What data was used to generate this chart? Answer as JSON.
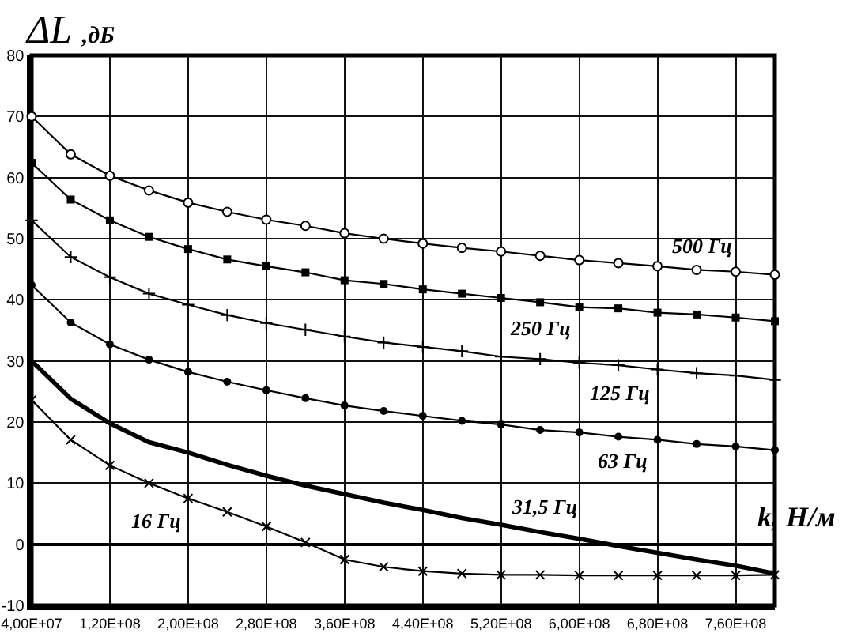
{
  "chart_data": {
    "type": "line",
    "ylabel": "ΔL ,дБ",
    "xlabel": "k, Н/м",
    "categories": [
      "4,00E+07",
      null,
      "1,20E+08",
      null,
      "2,00E+08",
      null,
      "2,80E+08",
      null,
      "3,60E+08",
      null,
      "4,40E+08",
      null,
      "5,20E+08",
      null,
      "6,00E+08",
      null,
      "6,80E+08",
      null,
      "7,60E+08",
      null
    ],
    "ylim": [
      -10,
      80
    ],
    "yticks": [
      -10,
      0,
      10,
      20,
      30,
      40,
      50,
      60,
      70,
      80
    ],
    "grid": true,
    "legend": false,
    "line_style": "solid",
    "series": [
      {
        "name": "500 Гц",
        "color": "#000000",
        "marker": "circle",
        "values": [
          70.0,
          63.8,
          60.3,
          57.9,
          55.9,
          54.4,
          53.1,
          52.1,
          50.9,
          50.0,
          49.2,
          48.5,
          47.9,
          47.2,
          46.5,
          46.0,
          45.5,
          44.9,
          44.6,
          44.1
        ]
      },
      {
        "name": "250 Гц",
        "color": "#000000",
        "marker": "square",
        "values": [
          62.4,
          56.4,
          53.0,
          50.3,
          48.3,
          46.6,
          45.5,
          44.5,
          43.2,
          42.6,
          41.7,
          41.0,
          40.3,
          39.6,
          38.8,
          38.6,
          37.9,
          37.6,
          37.1,
          36.5
        ]
      },
      {
        "name": "125 Гц",
        "color": "#000000",
        "marker": "cross",
        "values": [
          53.0,
          47.0,
          43.7,
          41.0,
          39.2,
          37.5,
          36.2,
          35.1,
          34.0,
          33.0,
          32.3,
          31.6,
          30.7,
          30.3,
          29.7,
          29.3,
          28.6,
          28.0,
          27.6,
          26.9
        ]
      },
      {
        "name": "63 Гц",
        "color": "#000000",
        "marker": "circle",
        "values": [
          42.4,
          36.3,
          32.7,
          30.2,
          28.2,
          26.6,
          25.2,
          23.9,
          22.7,
          21.8,
          21.0,
          20.2,
          19.6,
          18.7,
          18.3,
          17.6,
          17.1,
          16.4,
          16.0,
          15.4
        ]
      },
      {
        "name": "31,5 Гц",
        "color": "#000000",
        "marker": "none",
        "values": [
          30.0,
          23.8,
          19.8,
          16.7,
          15.0,
          13.0,
          11.2,
          9.6,
          8.2,
          6.8,
          5.6,
          4.3,
          3.2,
          2.0,
          0.9,
          -0.3,
          -1.4,
          -2.5,
          -3.5,
          -4.8
        ]
      },
      {
        "name": "16 Гц",
        "color": "#000000",
        "marker": "cross",
        "values": [
          23.6,
          17.1,
          12.9,
          10.0,
          7.5,
          5.3,
          2.9,
          0.3,
          -2.5,
          -3.7,
          -4.4,
          -4.8,
          -5.0,
          -5.0,
          -5.1,
          -5.1,
          -5.1,
          -5.1,
          -5.1,
          -5.0
        ]
      }
    ]
  }
}
